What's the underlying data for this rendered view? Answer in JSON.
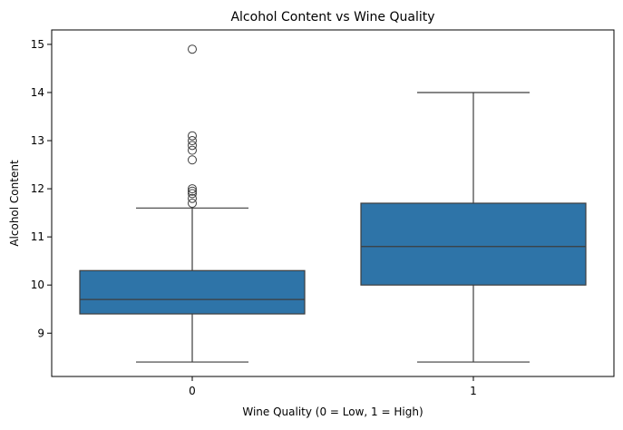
{
  "chart_data": {
    "type": "box",
    "title": "Alcohol Content vs Wine Quality",
    "xlabel": "Wine Quality (0 = Low, 1 = High)",
    "ylabel": "Alcohol Content",
    "categories": [
      "0",
      "1"
    ],
    "ylim": [
      8.1,
      15.3
    ],
    "yticks": [
      9,
      10,
      11,
      12,
      13,
      14,
      15
    ],
    "grid": false,
    "box_color": "#2e74a8",
    "line_color": "#3d3d3d",
    "boxes": [
      {
        "category": "0",
        "whisker_low": 8.4,
        "q1": 9.4,
        "median": 9.7,
        "q3": 10.3,
        "whisker_high": 11.6,
        "outliers": [
          11.7,
          11.8,
          11.9,
          11.95,
          12.0,
          12.6,
          12.8,
          12.9,
          13.0,
          13.1,
          14.9
        ]
      },
      {
        "category": "1",
        "whisker_low": 8.4,
        "q1": 10.0,
        "median": 10.8,
        "q3": 11.7,
        "whisker_high": 14.0,
        "outliers": []
      }
    ]
  }
}
